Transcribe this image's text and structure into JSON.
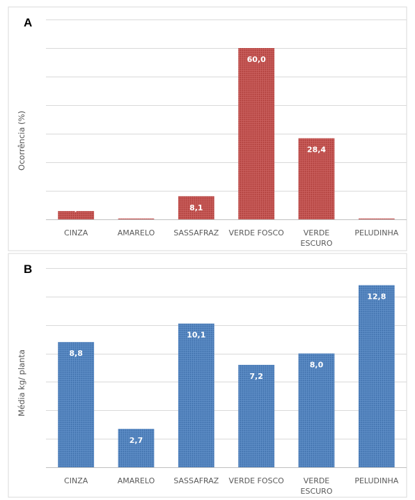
{
  "chart_data": [
    {
      "panel": "A",
      "type": "bar",
      "ylabel": "Ocorrência (%)",
      "categories": [
        "CINZA",
        "AMARELO",
        "SASSAFRAZ",
        "VERDE FOSCO",
        "VERDE ESCURO",
        "PELUDINHA"
      ],
      "category_lines": [
        [
          "CINZA"
        ],
        [
          "AMARELO"
        ],
        [
          "SASSAFRAZ"
        ],
        [
          "VERDE FOSCO"
        ],
        [
          "VERDE",
          "ESCURO"
        ],
        [
          "PELUDINHA"
        ]
      ],
      "values": [
        2.9,
        0.3,
        8.1,
        60.0,
        28.4,
        0.3
      ],
      "value_labels": [
        "2,9",
        "0,3",
        "8,1",
        "60,0",
        "28,4",
        "0,3"
      ],
      "ylim": [
        0,
        70
      ],
      "grid_step": 10,
      "grid": true,
      "color": "#c0504d"
    },
    {
      "panel": "B",
      "type": "bar",
      "ylabel": "Média kg/ planta",
      "categories": [
        "CINZA",
        "AMARELO",
        "SASSAFRAZ",
        "VERDE FOSCO",
        "VERDE ESCURO",
        "PELUDINHA"
      ],
      "category_lines": [
        [
          "CINZA"
        ],
        [
          "AMARELO"
        ],
        [
          "SASSAFRAZ"
        ],
        [
          "VERDE FOSCO"
        ],
        [
          "VERDE",
          "ESCURO"
        ],
        [
          "PELUDINHA"
        ]
      ],
      "values": [
        8.8,
        2.7,
        10.1,
        7.2,
        8.0,
        12.8
      ],
      "value_labels": [
        "8,8",
        "2,7",
        "10,1",
        "7,2",
        "8,0",
        "12,8"
      ],
      "ylim": [
        0,
        14
      ],
      "grid_step": 2,
      "grid": true,
      "color": "#4f81bd"
    }
  ]
}
